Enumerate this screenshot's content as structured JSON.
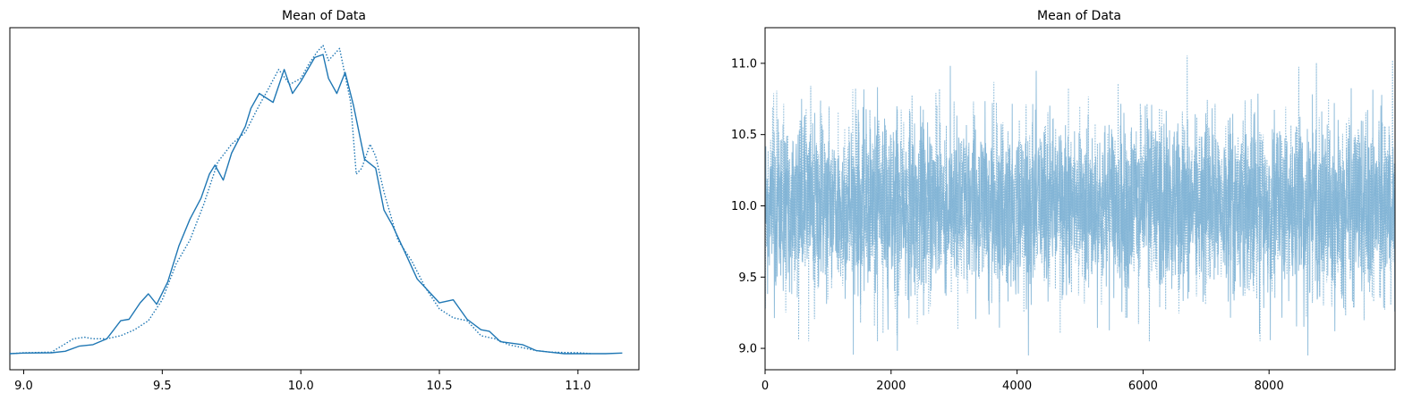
{
  "chart_data": [
    {
      "type": "line",
      "title": "Mean of Data",
      "xlabel": "",
      "ylabel": "",
      "xlim": [
        8.95,
        11.22
      ],
      "x_ticks": [
        "9.0",
        "9.5",
        "10.0",
        "10.5",
        "11.0"
      ],
      "y_ticks": [],
      "grid": false,
      "color": "#1f77b4",
      "series": [
        {
          "line_style": "solid",
          "x": [
            8.95,
            9.0,
            9.1,
            9.15,
            9.2,
            9.25,
            9.3,
            9.35,
            9.38,
            9.42,
            9.45,
            9.48,
            9.52,
            9.56,
            9.6,
            9.64,
            9.67,
            9.69,
            9.72,
            9.75,
            9.8,
            9.82,
            9.85,
            9.9,
            9.94,
            9.97,
            10.0,
            10.05,
            10.08,
            10.1,
            10.13,
            10.16,
            10.19,
            10.23,
            10.27,
            10.3,
            10.33,
            10.38,
            10.42,
            10.47,
            10.5,
            10.55,
            10.6,
            10.65,
            10.68,
            10.72,
            10.8,
            10.85,
            10.9,
            10.95,
            11.0,
            11.1,
            11.16
          ],
          "y": [
            0.0,
            0.002,
            0.003,
            0.008,
            0.025,
            0.03,
            0.05,
            0.11,
            0.115,
            0.17,
            0.2,
            0.165,
            0.24,
            0.36,
            0.45,
            0.52,
            0.6,
            0.63,
            0.58,
            0.67,
            0.76,
            0.82,
            0.87,
            0.84,
            0.95,
            0.87,
            0.91,
            0.99,
            1.0,
            0.92,
            0.87,
            0.94,
            0.83,
            0.65,
            0.62,
            0.48,
            0.43,
            0.33,
            0.25,
            0.2,
            0.17,
            0.18,
            0.115,
            0.08,
            0.075,
            0.04,
            0.03,
            0.01,
            0.005,
            0.0,
            0.0,
            0.0,
            0.002
          ]
        },
        {
          "line_style": "dotted",
          "x": [
            8.95,
            9.0,
            9.1,
            9.18,
            9.22,
            9.25,
            9.3,
            9.35,
            9.4,
            9.45,
            9.5,
            9.55,
            9.6,
            9.65,
            9.7,
            9.75,
            9.8,
            9.85,
            9.88,
            9.92,
            9.96,
            10.0,
            10.03,
            10.06,
            10.08,
            10.1,
            10.12,
            10.14,
            10.16,
            10.18,
            10.2,
            10.22,
            10.25,
            10.27,
            10.3,
            10.35,
            10.4,
            10.45,
            10.5,
            10.55,
            10.6,
            10.65,
            10.7,
            10.75,
            10.8,
            10.85,
            10.9,
            11.0,
            11.05
          ],
          "y": [
            0.0,
            0.003,
            0.005,
            0.05,
            0.055,
            0.05,
            0.05,
            0.06,
            0.08,
            0.11,
            0.18,
            0.3,
            0.38,
            0.5,
            0.64,
            0.7,
            0.74,
            0.83,
            0.88,
            0.95,
            0.9,
            0.92,
            0.97,
            1.01,
            1.03,
            0.98,
            1.0,
            1.02,
            0.93,
            0.84,
            0.6,
            0.62,
            0.7,
            0.66,
            0.54,
            0.38,
            0.31,
            0.22,
            0.15,
            0.12,
            0.11,
            0.06,
            0.05,
            0.03,
            0.02,
            0.01,
            0.005,
            0.003,
            0.0
          ]
        }
      ]
    },
    {
      "type": "line",
      "title": "Mean of Data",
      "xlabel": "",
      "ylabel": "",
      "xlim": [
        0,
        10000
      ],
      "ylim": [
        8.85,
        11.25
      ],
      "x_ticks": [
        "0",
        "2000",
        "4000",
        "6000",
        "8000"
      ],
      "y_ticks": [
        "9.0",
        "9.5",
        "10.0",
        "10.5",
        "11.0"
      ],
      "grid": false,
      "color": "#7fb3d5",
      "series_note": "dense MCMC trace, two chains (solid and dotted), ~10000 draws each",
      "series": [
        {
          "line_style": "solid",
          "draws": 10000,
          "mean": 10.0,
          "sd": 0.3,
          "min": 8.95,
          "max": 11.15
        },
        {
          "line_style": "dotted",
          "draws": 10000,
          "mean": 10.0,
          "sd": 0.3,
          "min": 9.05,
          "max": 11.12
        }
      ]
    }
  ]
}
